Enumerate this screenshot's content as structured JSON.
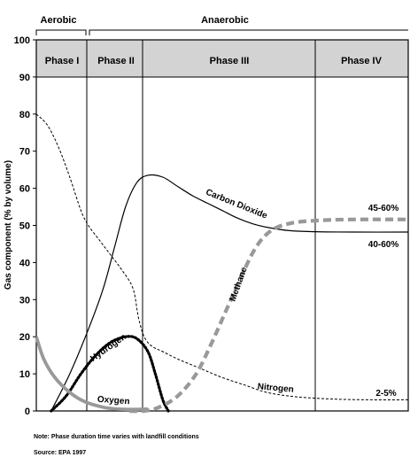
{
  "chart_data": {
    "type": "line",
    "ylabel": "Gas component (% by volume)",
    "ylim": [
      0,
      100
    ],
    "yticks": [
      0,
      10,
      20,
      30,
      40,
      50,
      60,
      70,
      80,
      90,
      100
    ],
    "xlim": [
      0,
      100
    ],
    "grid": false,
    "regimes": [
      {
        "label": "Aerobic",
        "x_range": [
          0,
          13.5
        ]
      },
      {
        "label": "Anaerobic",
        "x_range": [
          13.5,
          100
        ]
      }
    ],
    "phases": [
      {
        "label": "Phase I",
        "x_range": [
          0,
          13.5
        ]
      },
      {
        "label": "Phase II",
        "x_range": [
          13.5,
          28.5
        ]
      },
      {
        "label": "Phase III",
        "x_range": [
          28.5,
          74.5
        ]
      },
      {
        "label": "Phase IV",
        "x_range": [
          74.5,
          100
        ]
      }
    ],
    "series": [
      {
        "name": "Carbon Dioxide",
        "style": "solid-thin",
        "color": "#000000",
        "points": [
          [
            4,
            0
          ],
          [
            9,
            10
          ],
          [
            14,
            22
          ],
          [
            18,
            33
          ],
          [
            21,
            44
          ],
          [
            24,
            55
          ],
          [
            27,
            61.5
          ],
          [
            30,
            63.5
          ],
          [
            34,
            63
          ],
          [
            38,
            60.5
          ],
          [
            42,
            58
          ],
          [
            46,
            56
          ],
          [
            50,
            54
          ],
          [
            54,
            52
          ],
          [
            58,
            50.5
          ],
          [
            62,
            49.5
          ],
          [
            68,
            48.6
          ],
          [
            75,
            48.3
          ],
          [
            85,
            48.2
          ],
          [
            100,
            48.2
          ]
        ]
      },
      {
        "name": "Nitrogen",
        "style": "dashed-thin",
        "color": "#000000",
        "points": [
          [
            0,
            80
          ],
          [
            3,
            77
          ],
          [
            6,
            71
          ],
          [
            9,
            63
          ],
          [
            12,
            54
          ],
          [
            14,
            50
          ],
          [
            17,
            46
          ],
          [
            20,
            42
          ],
          [
            23,
            38
          ],
          [
            26,
            33
          ],
          [
            27.5,
            25
          ],
          [
            29,
            20
          ],
          [
            31,
            17.5
          ],
          [
            34,
            16
          ],
          [
            38,
            14
          ],
          [
            44,
            11.5
          ],
          [
            50,
            9
          ],
          [
            56,
            7
          ],
          [
            62,
            5
          ],
          [
            70,
            3.8
          ],
          [
            80,
            3.2
          ],
          [
            90,
            3
          ],
          [
            100,
            3
          ]
        ]
      },
      {
        "name": "Hydrogen",
        "style": "dotted-thick",
        "color": "#000000",
        "points": [
          [
            4,
            0
          ],
          [
            8,
            4
          ],
          [
            12,
            10
          ],
          [
            16,
            15
          ],
          [
            20,
            18.5
          ],
          [
            24,
            20
          ],
          [
            27,
            19.5
          ],
          [
            30,
            16
          ],
          [
            32,
            10
          ],
          [
            34,
            3
          ],
          [
            35.5,
            0
          ]
        ]
      },
      {
        "name": "Oxygen",
        "style": "solid-thick",
        "color": "#999999",
        "points": [
          [
            0,
            20
          ],
          [
            2,
            14
          ],
          [
            5,
            9
          ],
          [
            9,
            5
          ],
          [
            13,
            2.5
          ],
          [
            18,
            1
          ],
          [
            22,
            0.5
          ],
          [
            26,
            0.4
          ],
          [
            30,
            0.5
          ]
        ]
      },
      {
        "name": "Methane",
        "style": "dashed-thick",
        "color": "#999999",
        "points": [
          [
            25,
            0
          ],
          [
            29,
            0
          ],
          [
            33,
            1
          ],
          [
            38,
            4
          ],
          [
            43,
            10
          ],
          [
            47,
            18
          ],
          [
            51,
            27
          ],
          [
            55,
            36
          ],
          [
            59,
            44
          ],
          [
            63,
            48.5
          ],
          [
            68,
            50.5
          ],
          [
            75,
            51.3
          ],
          [
            85,
            51.6
          ],
          [
            100,
            51.6
          ]
        ]
      }
    ],
    "annotations": [
      {
        "text": "Carbon Dioxide",
        "series": "Carbon Dioxide"
      },
      {
        "text": "Nitrogen",
        "series": "Nitrogen"
      },
      {
        "text": "Hydrogen",
        "series": "Hydrogen"
      },
      {
        "text": "Oxygen",
        "series": "Oxygen"
      },
      {
        "text": "Methane",
        "series": "Methane"
      },
      {
        "text": "45-60%",
        "refers_to": "Methane"
      },
      {
        "text": "40-60%",
        "refers_to": "Carbon Dioxide"
      },
      {
        "text": "2-5%",
        "refers_to": "Nitrogen"
      }
    ]
  },
  "notes": {
    "note": "Note:  Phase duration time varies with landfill conditions",
    "source": "Source: EPA 1997"
  }
}
